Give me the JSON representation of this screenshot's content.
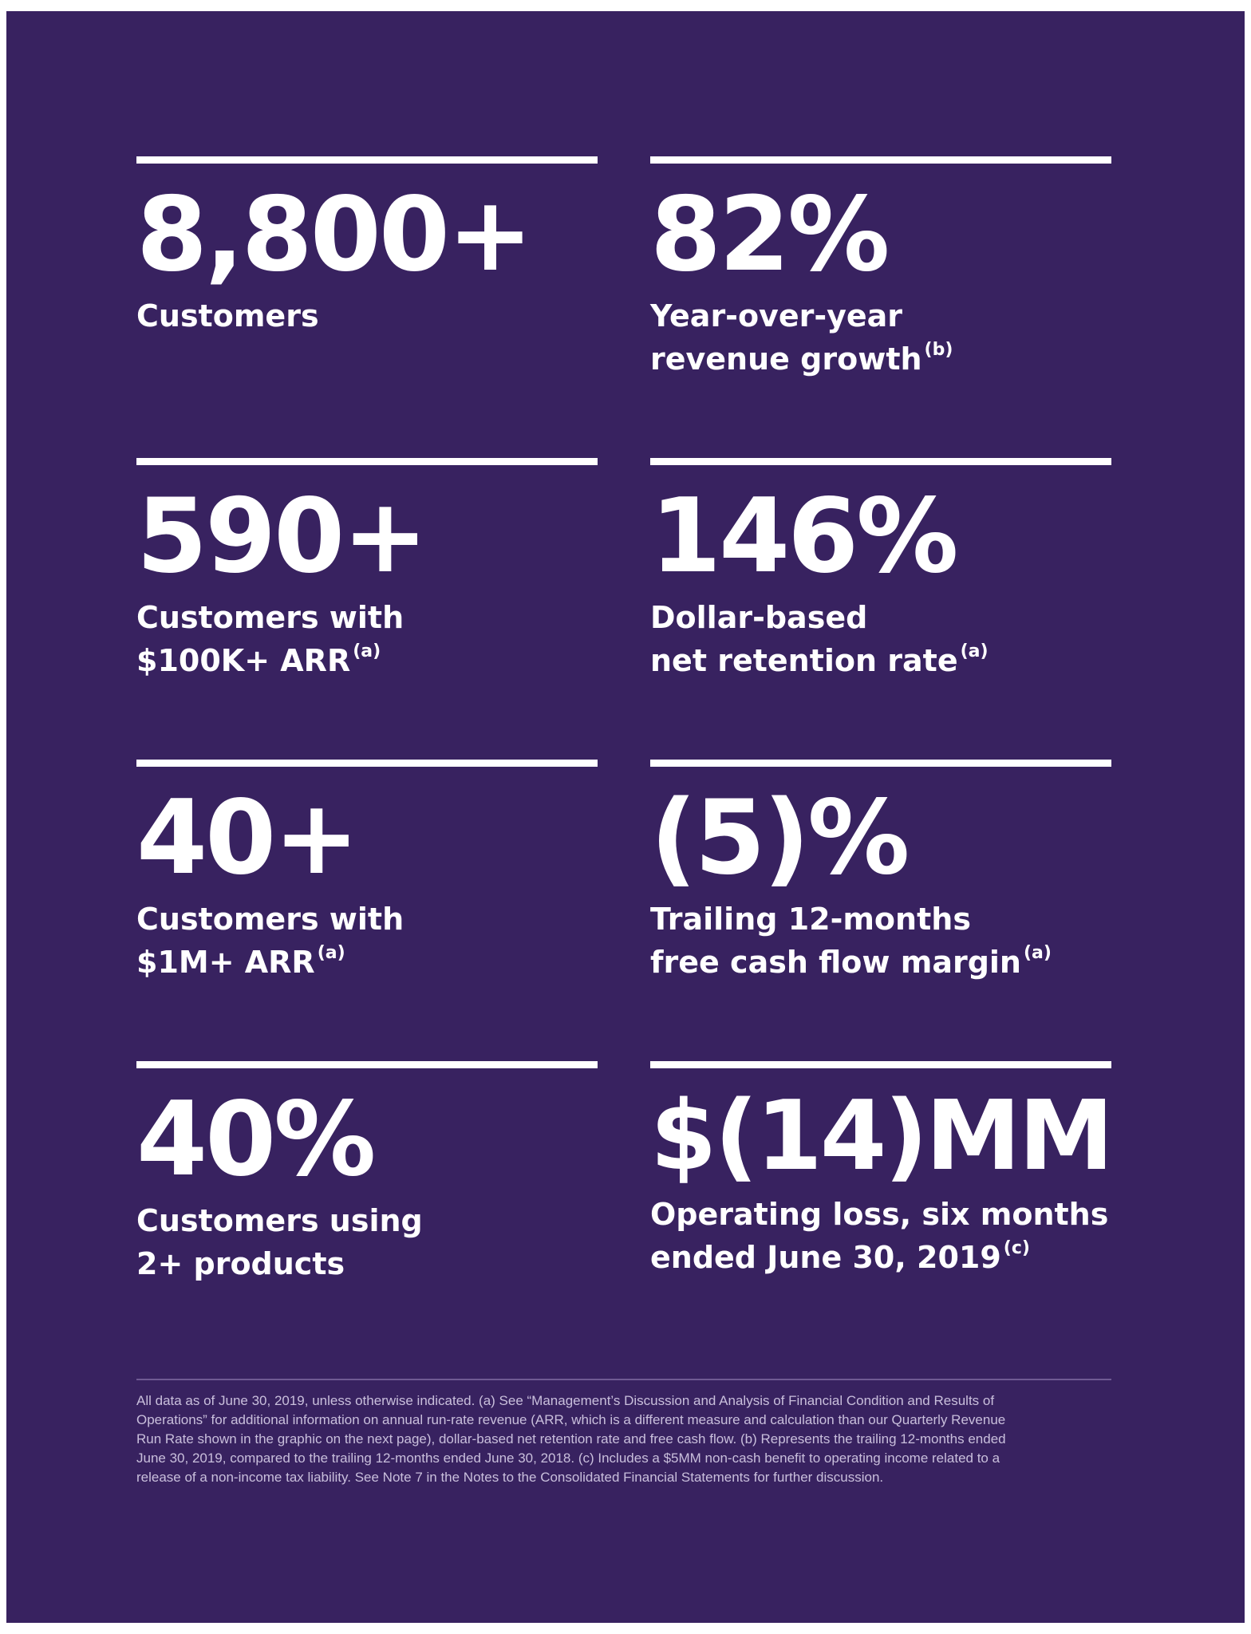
{
  "colors": {
    "background": "#382260",
    "text": "#ffffff",
    "footnote": "#c9bfdc"
  },
  "stats": [
    {
      "value": "8,800+",
      "label_lines": [
        "Customers"
      ],
      "footnote_mark": ""
    },
    {
      "value": "82%",
      "label_lines": [
        "Year-over-year",
        "revenue growth"
      ],
      "footnote_mark": "(b)"
    },
    {
      "value": "590+",
      "label_lines": [
        "Customers with",
        "$100K+ ARR"
      ],
      "footnote_mark": "(a)"
    },
    {
      "value": "146%",
      "label_lines": [
        "Dollar-based",
        "net retention rate"
      ],
      "footnote_mark": "(a)"
    },
    {
      "value": "40+",
      "label_lines": [
        "Customers with",
        "$1M+ ARR"
      ],
      "footnote_mark": "(a)"
    },
    {
      "value": "(5)%",
      "label_lines": [
        "Trailing 12-months",
        "free cash flow margin"
      ],
      "footnote_mark": "(a)"
    },
    {
      "value": "40%",
      "label_lines": [
        "Customers using",
        "2+ products"
      ],
      "footnote_mark": ""
    },
    {
      "value": "$(14)MM",
      "label_lines": [
        "Operating loss, six months",
        "ended June 30, 2019"
      ],
      "footnote_mark": "(c)"
    }
  ],
  "footnote_lines": [
    "All data as of June 30, 2019, unless otherwise indicated. (a) See “Management’s Discussion and Analysis of Financial Condition and Results of",
    "Operations” for additional information on annual run-rate revenue (ARR, which is a different measure and calculation than our Quarterly Revenue",
    "Run Rate shown in the graphic on the next page), dollar-based net retention rate and free cash flow. (b) Represents the trailing 12-months ended",
    "June 30, 2019, compared to the trailing 12-months ended June 30, 2018. (c) Includes a $5MM non-cash benefit to operating income related to a",
    "release of a non-income tax liability. See Note 7 in the Notes to the Consolidated Financial Statements for further discussion."
  ]
}
